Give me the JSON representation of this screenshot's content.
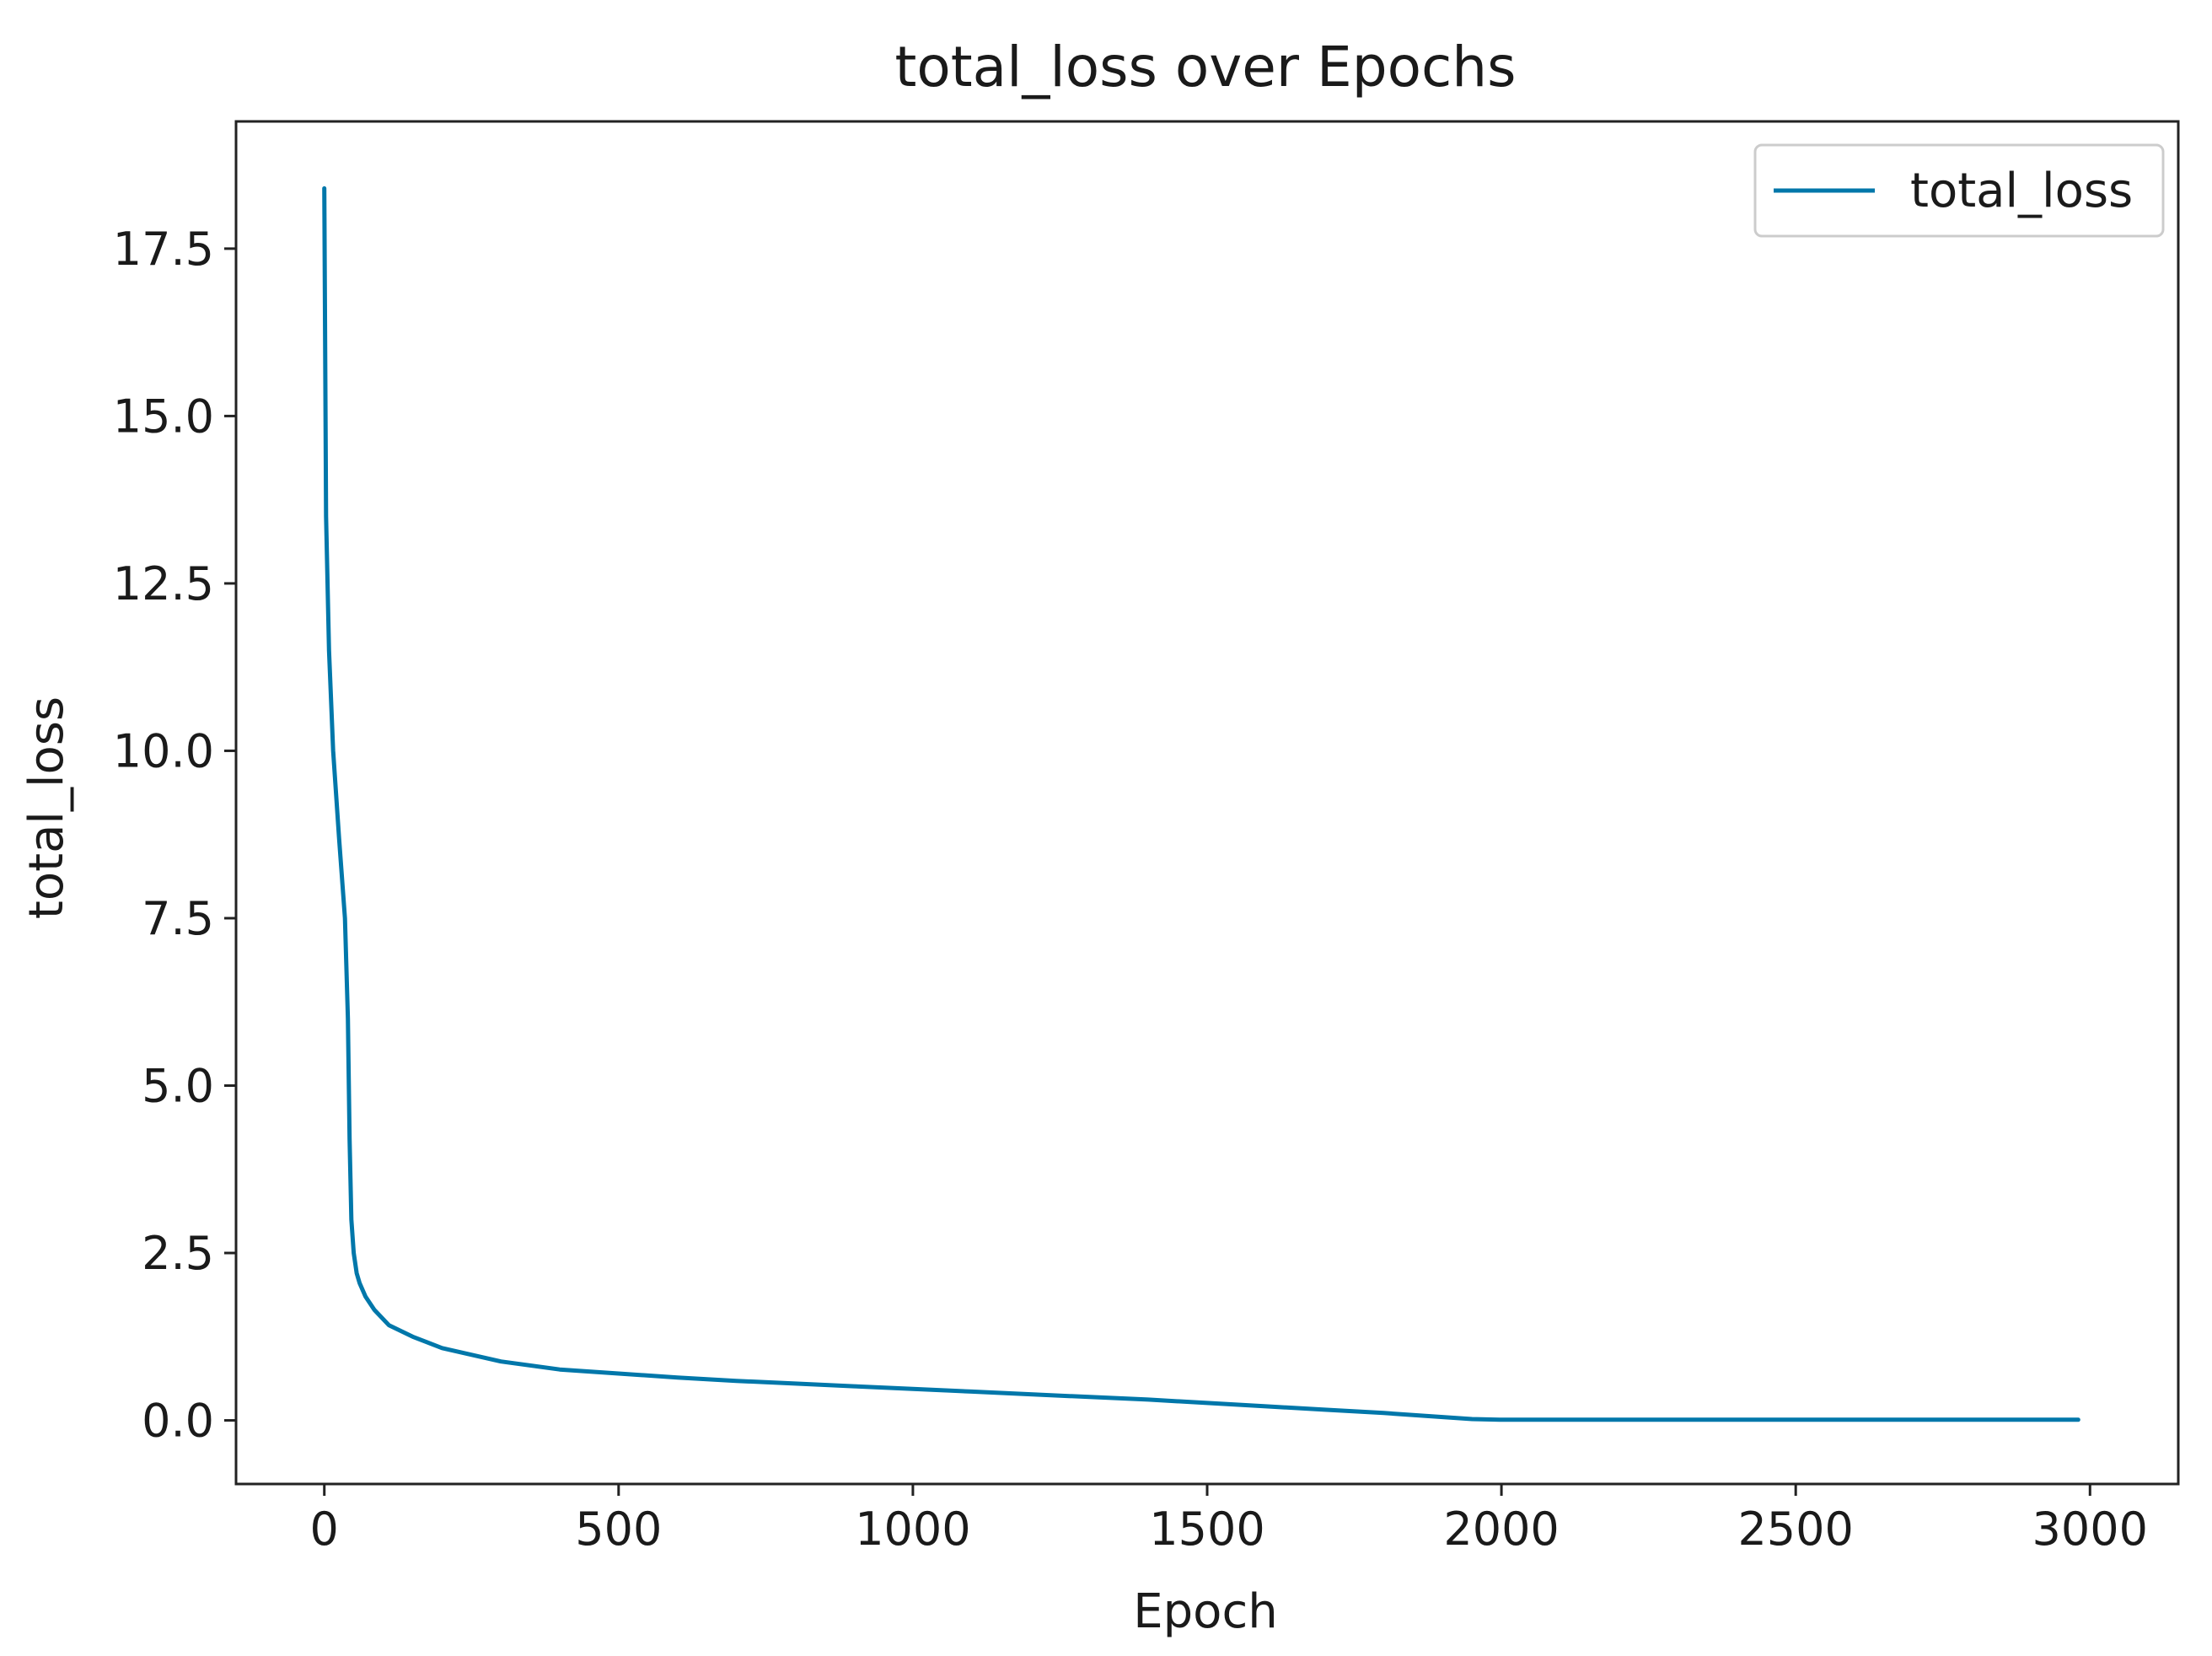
{
  "chart_data": {
    "type": "line",
    "title": "total_loss over Epochs",
    "xlabel": "Epoch",
    "ylabel": "total_loss",
    "xlim": [
      -150,
      3150
    ],
    "ylim": [
      -0.95,
      19.4
    ],
    "xticks": [
      0,
      500,
      1000,
      1500,
      2000,
      2500,
      3000
    ],
    "xtick_labels": [
      "0",
      "500",
      "1000",
      "1500",
      "2000",
      "2500",
      "3000"
    ],
    "yticks": [
      0.0,
      2.5,
      5.0,
      7.5,
      10.0,
      12.5,
      15.0,
      17.5
    ],
    "ytick_labels": [
      "0.0",
      "2.5",
      "5.0",
      "7.5",
      "10.0",
      "12.5",
      "15.0",
      "17.5"
    ],
    "grid": false,
    "legend_position": "top-right",
    "series": [
      {
        "name": "total_loss",
        "color": "#0077aa",
        "x": [
          0,
          3,
          8,
          15,
          25,
          35,
          40,
          43,
          46,
          50,
          55,
          60,
          70,
          85,
          110,
          150,
          200,
          300,
          400,
          500,
          600,
          700,
          800,
          900,
          1000,
          1100,
          1200,
          1300,
          1400,
          1500,
          1600,
          1700,
          1800,
          1900,
          1950,
          2000,
          2200,
          2400,
          2600,
          2800,
          2980
        ],
        "y": [
          18.4,
          13.5,
          11.5,
          10.0,
          8.7,
          7.5,
          6.0,
          4.2,
          3.0,
          2.5,
          2.2,
          2.05,
          1.85,
          1.65,
          1.42,
          1.25,
          1.08,
          0.88,
          0.76,
          0.7,
          0.64,
          0.59,
          0.55,
          0.51,
          0.47,
          0.43,
          0.39,
          0.35,
          0.31,
          0.26,
          0.21,
          0.16,
          0.11,
          0.05,
          0.02,
          0.01,
          0.01,
          0.01,
          0.01,
          0.01,
          0.01
        ]
      }
    ]
  }
}
